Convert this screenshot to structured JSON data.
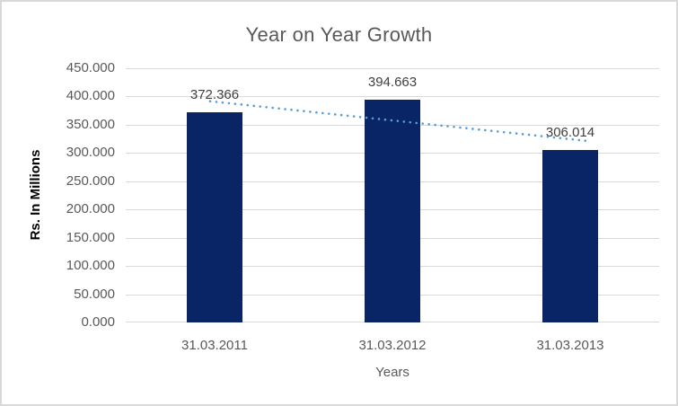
{
  "chart_data": {
    "type": "bar",
    "title": "Year on Year Growth",
    "xlabel": "Years",
    "ylabel": "Rs. In Millions",
    "categories": [
      "31.03.2011",
      "31.03.2012",
      "31.03.2013"
    ],
    "values": [
      372.366,
      394.663,
      306.014
    ],
    "data_labels": [
      "372.366",
      "394.663",
      "306.014"
    ],
    "ylim": [
      0,
      450
    ],
    "ytick_step": 50,
    "ytick_labels": [
      "450.000",
      "400.000",
      "350.000",
      "300.000",
      "250.000",
      "200.000",
      "150.000",
      "100.000",
      "50.000",
      "0.000"
    ],
    "grid": true,
    "legend": false,
    "trendline": {
      "type": "linear",
      "style": "dotted-round"
    }
  },
  "colors": {
    "bar": "#0a2566",
    "trendline": "#5B9BD5",
    "gridline": "#D9D9D9",
    "border": "#D9D9D9",
    "title_text": "#595959",
    "axis_text": "#595959",
    "data_label_text": "#404040",
    "y_axis_title_text": "#000000",
    "background": "#ffffff"
  }
}
